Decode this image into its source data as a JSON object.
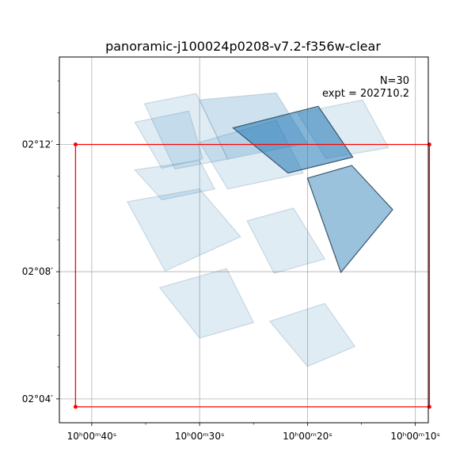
{
  "chart_data": {
    "type": "scatter",
    "title": "panoramic-j100024p0208-v7.2-f356w-clear",
    "annotations": [
      "N=30",
      "expt = 202710.2"
    ],
    "xlabel": "",
    "ylabel": "",
    "x_unit": "RA seconds after 10h00m00s",
    "y_unit": "Dec arcminutes after +02 deg",
    "x_axis_inverted": true,
    "xlim": [
      43.0,
      8.8
    ],
    "ylim": [
      3.25,
      14.75
    ],
    "grid": true,
    "x_ticks": [
      {
        "value": 40,
        "label": "10ʰ00ᵐ40ˢ"
      },
      {
        "value": 30,
        "label": "10ʰ00ᵐ30ˢ"
      },
      {
        "value": 20,
        "label": "10ʰ00ᵐ20ˢ"
      },
      {
        "value": 10,
        "label": "10ʰ00ᵐ10ˢ"
      }
    ],
    "x_minor_ticks": [
      35,
      25,
      15
    ],
    "y_ticks": [
      {
        "value": 4,
        "label": "02°04′"
      },
      {
        "value": 8,
        "label": "02°08′"
      },
      {
        "value": 12,
        "label": "02°12′"
      }
    ],
    "y_minor_ticks": [
      5,
      6,
      7,
      9,
      10,
      11,
      13,
      14
    ],
    "footprint_colors": {
      "fill": "#1f77b4",
      "edge": "#2c4a5e"
    },
    "footprints": [
      {
        "opacity": 0.14,
        "corners": [
          [
            35.1,
            13.28
          ],
          [
            30.3,
            13.6
          ],
          [
            27.4,
            11.54
          ],
          [
            32.3,
            11.23
          ]
        ]
      },
      {
        "opacity": 0.14,
        "corners": [
          [
            36.0,
            12.7
          ],
          [
            31.0,
            13.05
          ],
          [
            29.7,
            11.55
          ],
          [
            33.5,
            11.25
          ]
        ]
      },
      {
        "opacity": 0.14,
        "corners": [
          [
            36.0,
            11.2
          ],
          [
            30.0,
            11.5
          ],
          [
            28.6,
            10.6
          ],
          [
            33.5,
            10.26
          ]
        ]
      },
      {
        "opacity": 0.14,
        "corners": [
          [
            36.7,
            10.2
          ],
          [
            30.0,
            10.6
          ],
          [
            26.2,
            9.1
          ],
          [
            33.2,
            8.02
          ]
        ]
      },
      {
        "opacity": 0.14,
        "corners": [
          [
            30.0,
            12.07
          ],
          [
            22.9,
            12.75
          ],
          [
            20.4,
            11.1
          ],
          [
            27.4,
            10.6
          ]
        ]
      },
      {
        "opacity": 0.22,
        "corners": [
          [
            30.0,
            13.4
          ],
          [
            22.9,
            13.62
          ],
          [
            20.0,
            12.04
          ],
          [
            27.4,
            11.54
          ]
        ]
      },
      {
        "opacity": 0.14,
        "corners": [
          [
            20.9,
            12.98
          ],
          [
            14.9,
            13.4
          ],
          [
            12.5,
            11.9
          ],
          [
            18.3,
            11.56
          ]
        ]
      },
      {
        "opacity": 0.14,
        "corners": [
          [
            25.6,
            9.6
          ],
          [
            21.3,
            10.0
          ],
          [
            18.4,
            8.4
          ],
          [
            23.1,
            7.95
          ]
        ]
      },
      {
        "opacity": 0.14,
        "corners": [
          [
            33.7,
            7.5
          ],
          [
            27.5,
            8.1
          ],
          [
            25.0,
            6.4
          ],
          [
            30.0,
            5.91
          ]
        ]
      },
      {
        "opacity": 0.14,
        "corners": [
          [
            23.5,
            6.44
          ],
          [
            18.4,
            7.0
          ],
          [
            15.6,
            5.65
          ],
          [
            20.0,
            5.02
          ]
        ]
      },
      {
        "opacity": 0.55,
        "corners": [
          [
            26.9,
            12.52
          ],
          [
            19.0,
            13.2
          ],
          [
            15.8,
            11.6
          ],
          [
            21.8,
            11.1
          ]
        ]
      },
      {
        "opacity": 0.45,
        "corners": [
          [
            20.0,
            10.94
          ],
          [
            15.9,
            11.34
          ],
          [
            12.1,
            9.95
          ],
          [
            16.9,
            7.98
          ]
        ]
      }
    ],
    "detector_region": {
      "color": "#ff0000",
      "corners": [
        [
          41.5,
          12.0
        ],
        [
          8.7,
          12.0
        ],
        [
          8.7,
          3.75
        ],
        [
          41.5,
          3.75
        ]
      ]
    }
  }
}
